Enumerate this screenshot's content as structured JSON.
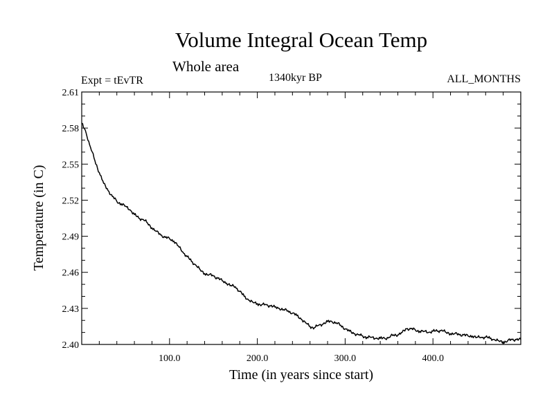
{
  "chart_data": {
    "type": "line",
    "title": "Volume Integral Ocean Temp",
    "subtitle": "Whole area",
    "experiment_label": "Expt = tEvTR",
    "period_label": "1340kyr BP",
    "months_label": "ALL_MONTHS",
    "xlabel": "Time (in years since start)",
    "ylabel": "Temperature (in C)",
    "xlim": [
      0,
      500
    ],
    "ylim": [
      2.4,
      2.61
    ],
    "xticks": [
      100,
      200,
      300,
      400
    ],
    "xtick_labels": [
      "100.0",
      "200.0",
      "300.0",
      "400.0"
    ],
    "yticks": [
      2.4,
      2.43,
      2.46,
      2.49,
      2.52,
      2.55,
      2.58,
      2.61
    ],
    "ytick_labels": [
      "2.40",
      "2.43",
      "2.46",
      "2.49",
      "2.52",
      "2.55",
      "2.58",
      "2.61"
    ],
    "grid": false,
    "series": [
      {
        "name": "Volume integral ocean temperature",
        "x": [
          0,
          5,
          10,
          15,
          20,
          25,
          30,
          35,
          40,
          45,
          50,
          55,
          60,
          65,
          70,
          75,
          80,
          85,
          90,
          95,
          100,
          105,
          110,
          115,
          120,
          125,
          130,
          135,
          140,
          145,
          150,
          155,
          160,
          165,
          170,
          175,
          180,
          185,
          190,
          195,
          200,
          205,
          210,
          215,
          220,
          225,
          230,
          235,
          240,
          245,
          250,
          255,
          260,
          265,
          270,
          275,
          280,
          285,
          290,
          295,
          300,
          305,
          310,
          315,
          320,
          325,
          330,
          335,
          340,
          345,
          350,
          355,
          360,
          365,
          370,
          375,
          380,
          385,
          390,
          395,
          400,
          405,
          410,
          415,
          420,
          425,
          430,
          435,
          440,
          445,
          450,
          455,
          460,
          465,
          470,
          475,
          480,
          485,
          490,
          495,
          500
        ],
        "y": [
          2.584,
          2.576,
          2.564,
          2.553,
          2.543,
          2.534,
          2.528,
          2.523,
          2.519,
          2.517,
          2.515,
          2.512,
          2.508,
          2.505,
          2.504,
          2.501,
          2.497,
          2.494,
          2.491,
          2.489,
          2.488,
          2.486,
          2.482,
          2.477,
          2.473,
          2.469,
          2.466,
          2.462,
          2.459,
          2.458,
          2.457,
          2.455,
          2.453,
          2.451,
          2.449,
          2.448,
          2.444,
          2.44,
          2.437,
          2.435,
          2.434,
          2.433,
          2.433,
          2.432,
          2.431,
          2.43,
          2.429,
          2.428,
          2.426,
          2.424,
          2.421,
          2.418,
          2.415,
          2.414,
          2.416,
          2.417,
          2.419,
          2.419,
          2.418,
          2.416,
          2.413,
          2.411,
          2.409,
          2.408,
          2.407,
          2.406,
          2.406,
          2.405,
          2.405,
          2.405,
          2.406,
          2.408,
          2.408,
          2.41,
          2.413,
          2.413,
          2.412,
          2.411,
          2.411,
          2.41,
          2.411,
          2.411,
          2.412,
          2.41,
          2.409,
          2.409,
          2.408,
          2.408,
          2.407,
          2.407,
          2.406,
          2.406,
          2.406,
          2.405,
          2.404,
          2.403,
          2.402,
          2.403,
          2.404,
          2.404,
          2.404
        ]
      }
    ]
  }
}
